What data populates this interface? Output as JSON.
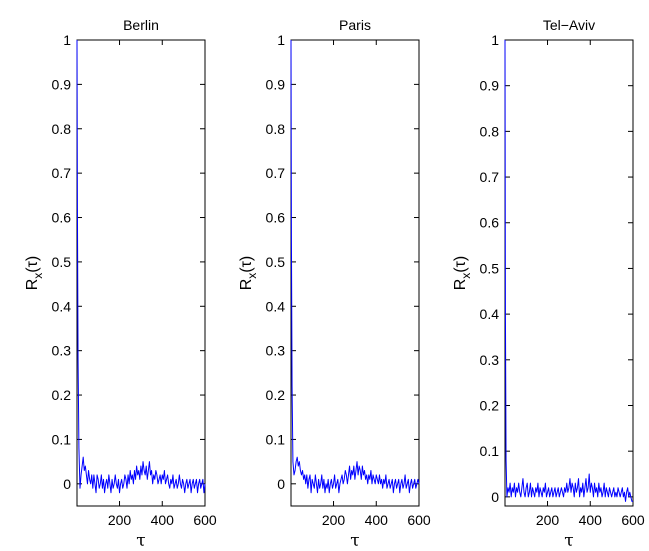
{
  "chart_data": [
    {
      "type": "line",
      "title": "Berlin",
      "xlabel": "τ",
      "ylabel": {
        "base": "R",
        "sub": "x",
        "arg": "(τ)"
      },
      "xlim": [
        1,
        600
      ],
      "ylim": [
        -0.05,
        1
      ],
      "xticks": [
        200,
        400,
        600
      ],
      "yticks": [
        0,
        0.1,
        0.2,
        0.3,
        0.4,
        0.5,
        0.6,
        0.7,
        0.8,
        0.9,
        1
      ],
      "grid": false,
      "series": [
        {
          "color": "#0000ff",
          "x": [
            1,
            3,
            6,
            10,
            15,
            20,
            25,
            30,
            35,
            40,
            45,
            50,
            55,
            60,
            65,
            70,
            75,
            80,
            85,
            90,
            95,
            100,
            105,
            110,
            115,
            120,
            125,
            130,
            135,
            140,
            145,
            150,
            155,
            160,
            165,
            170,
            175,
            180,
            185,
            190,
            195,
            200,
            205,
            210,
            215,
            220,
            225,
            230,
            235,
            240,
            245,
            250,
            255,
            260,
            265,
            270,
            275,
            280,
            285,
            290,
            295,
            300,
            305,
            310,
            315,
            320,
            325,
            330,
            335,
            340,
            345,
            350,
            355,
            360,
            365,
            370,
            375,
            380,
            385,
            390,
            395,
            400,
            405,
            410,
            415,
            420,
            425,
            430,
            435,
            440,
            445,
            450,
            455,
            460,
            465,
            470,
            475,
            480,
            485,
            490,
            495,
            500,
            505,
            510,
            515,
            520,
            525,
            530,
            535,
            540,
            545,
            550,
            555,
            560,
            565,
            570,
            575,
            580,
            585,
            590,
            595,
            600
          ],
          "y": [
            1,
            0.62,
            0.28,
            0.08,
            -0.01,
            0.02,
            0.04,
            0.06,
            0.03,
            0.04,
            0.02,
            0.0,
            0.03,
            0.01,
            0.0,
            0.02,
            -0.01,
            0.02,
            0.0,
            -0.02,
            0.02,
            0.01,
            -0.01,
            0.0,
            0.02,
            -0.01,
            0.01,
            -0.02,
            0.0,
            0.01,
            -0.01,
            0.02,
            0.0,
            -0.02,
            0.01,
            -0.01,
            0.0,
            0.02,
            0.0,
            -0.01,
            0.01,
            -0.02,
            0.0,
            0.01,
            -0.01,
            0.0,
            0.02,
            0.01,
            -0.01,
            0.02,
            0.0,
            0.03,
            0.01,
            0.02,
            0.0,
            0.03,
            0.01,
            0.04,
            0.02,
            0.03,
            0.01,
            0.04,
            0.02,
            0.05,
            0.03,
            0.02,
            0.04,
            0.01,
            0.03,
            0.05,
            0.02,
            0.03,
            0.0,
            0.02,
            0.01,
            0.03,
            0.02,
            0.0,
            0.01,
            0.02,
            0.0,
            0.02,
            0.01,
            0.03,
            0.0,
            0.01,
            0.02,
            0.0,
            -0.01,
            0.01,
            0.0,
            0.02,
            -0.01,
            0.0,
            0.01,
            -0.01,
            0.0,
            0.02,
            0.0,
            -0.01,
            0.01,
            0.0,
            -0.02,
            0.0,
            0.01,
            -0.01,
            0.0,
            0.01,
            -0.02,
            0.0,
            0.01,
            -0.01,
            0.0,
            0.01,
            -0.02,
            0.0,
            0.01,
            -0.01,
            0.0,
            0.01,
            -0.02,
            0.0
          ]
        }
      ]
    },
    {
      "type": "line",
      "title": "Paris",
      "xlabel": "τ",
      "ylabel": {
        "base": "R",
        "sub": "x",
        "arg": "(τ)"
      },
      "xlim": [
        1,
        600
      ],
      "ylim": [
        -0.05,
        1
      ],
      "xticks": [
        200,
        400,
        600
      ],
      "yticks": [
        0,
        0.1,
        0.2,
        0.3,
        0.4,
        0.5,
        0.6,
        0.7,
        0.8,
        0.9,
        1
      ],
      "grid": false,
      "series": [
        {
          "color": "#0000ff",
          "x": [
            1,
            3,
            6,
            10,
            15,
            20,
            25,
            30,
            35,
            40,
            45,
            50,
            55,
            60,
            65,
            70,
            75,
            80,
            85,
            90,
            95,
            100,
            105,
            110,
            115,
            120,
            125,
            130,
            135,
            140,
            145,
            150,
            155,
            160,
            165,
            170,
            175,
            180,
            185,
            190,
            195,
            200,
            205,
            210,
            215,
            220,
            225,
            230,
            235,
            240,
            245,
            250,
            255,
            260,
            265,
            270,
            275,
            280,
            285,
            290,
            295,
            300,
            305,
            310,
            315,
            320,
            325,
            330,
            335,
            340,
            345,
            350,
            355,
            360,
            365,
            370,
            375,
            380,
            385,
            390,
            395,
            400,
            405,
            410,
            415,
            420,
            425,
            430,
            435,
            440,
            445,
            450,
            455,
            460,
            465,
            470,
            475,
            480,
            485,
            490,
            495,
            500,
            505,
            510,
            515,
            520,
            525,
            530,
            535,
            540,
            545,
            550,
            555,
            560,
            565,
            570,
            575,
            580,
            585,
            590,
            595,
            600
          ],
          "y": [
            1,
            0.55,
            0.22,
            0.05,
            0.02,
            0.03,
            0.05,
            0.06,
            0.04,
            0.05,
            0.03,
            0.02,
            0.03,
            0.01,
            0.02,
            0.0,
            0.02,
            -0.01,
            0.01,
            0.02,
            -0.02,
            0.01,
            0.0,
            -0.01,
            0.02,
            0.0,
            -0.02,
            0.01,
            -0.01,
            0.0,
            0.02,
            -0.01,
            0.01,
            -0.02,
            0.0,
            -0.01,
            0.01,
            -0.02,
            0.0,
            0.01,
            -0.01,
            0.0,
            0.02,
            -0.01,
            0.0,
            0.01,
            -0.02,
            0.0,
            0.01,
            0.02,
            0.0,
            0.01,
            0.03,
            0.02,
            0.0,
            0.02,
            0.04,
            0.01,
            0.03,
            0.02,
            0.04,
            0.01,
            0.03,
            0.05,
            0.02,
            0.04,
            0.03,
            0.01,
            0.04,
            0.02,
            0.03,
            0.01,
            0.02,
            0.0,
            0.02,
            0.01,
            0.03,
            0.0,
            0.02,
            0.01,
            0.0,
            0.02,
            0.01,
            0.0,
            0.02,
            0.0,
            0.01,
            -0.01,
            0.01,
            0.0,
            0.02,
            -0.01,
            0.0,
            0.01,
            -0.01,
            0.0,
            0.01,
            -0.02,
            0.0,
            0.01,
            -0.01,
            0.0,
            0.01,
            -0.02,
            0.0,
            0.01,
            -0.01,
            0.0,
            0.02,
            -0.01,
            0.0,
            0.01,
            -0.02,
            0.0,
            0.01,
            -0.01,
            0.0,
            0.01,
            -0.01,
            0.0,
            0.01,
            0.0
          ]
        }
      ]
    },
    {
      "type": "line",
      "title": "Tel−Aviv",
      "xlabel": "τ",
      "ylabel": {
        "base": "R",
        "sub": "x",
        "arg": "(τ)"
      },
      "xlim": [
        1,
        600
      ],
      "ylim": [
        -0.02,
        1
      ],
      "xticks": [
        200,
        400,
        600
      ],
      "yticks": [
        0,
        0.1,
        0.2,
        0.3,
        0.4,
        0.5,
        0.6,
        0.7,
        0.8,
        0.9,
        1
      ],
      "grid": false,
      "series": [
        {
          "color": "#0000ff",
          "x": [
            1,
            3,
            6,
            10,
            15,
            20,
            25,
            30,
            35,
            40,
            45,
            50,
            55,
            60,
            65,
            70,
            75,
            80,
            85,
            90,
            95,
            100,
            105,
            110,
            115,
            120,
            125,
            130,
            135,
            140,
            145,
            150,
            155,
            160,
            165,
            170,
            175,
            180,
            185,
            190,
            195,
            200,
            205,
            210,
            215,
            220,
            225,
            230,
            235,
            240,
            245,
            250,
            255,
            260,
            265,
            270,
            275,
            280,
            285,
            290,
            295,
            300,
            305,
            310,
            315,
            320,
            325,
            330,
            335,
            340,
            345,
            350,
            355,
            360,
            365,
            370,
            375,
            380,
            385,
            390,
            395,
            400,
            405,
            410,
            415,
            420,
            425,
            430,
            435,
            440,
            445,
            450,
            455,
            460,
            465,
            470,
            475,
            480,
            485,
            490,
            495,
            500,
            505,
            510,
            515,
            520,
            525,
            530,
            535,
            540,
            545,
            550,
            555,
            560,
            565,
            570,
            575,
            580,
            585,
            590,
            595,
            600
          ],
          "y": [
            1,
            0.4,
            0.08,
            0.0,
            0.02,
            0.01,
            0.03,
            0.0,
            0.02,
            0.01,
            0.03,
            0.0,
            0.02,
            0.01,
            0.03,
            0.01,
            0.0,
            0.02,
            0.04,
            0.01,
            0.0,
            0.02,
            0.03,
            0.0,
            0.01,
            0.03,
            0.0,
            0.02,
            0.01,
            0.0,
            0.02,
            0.01,
            0.03,
            0.0,
            0.02,
            0.01,
            0.0,
            0.02,
            0.01,
            0.03,
            0.0,
            0.01,
            0.02,
            0.0,
            0.01,
            0.02,
            0.0,
            0.01,
            0.02,
            0.0,
            0.01,
            0.02,
            0.0,
            0.01,
            0.02,
            0.01,
            0.0,
            0.02,
            0.01,
            0.03,
            0.01,
            0.02,
            0.04,
            0.01,
            0.03,
            0.02,
            0.0,
            0.03,
            0.01,
            0.02,
            0.04,
            0.0,
            0.02,
            0.01,
            0.03,
            0.0,
            0.02,
            0.04,
            0.01,
            0.02,
            0.05,
            0.01,
            0.03,
            0.02,
            0.0,
            0.03,
            0.01,
            0.02,
            0.0,
            0.03,
            0.01,
            0.02,
            0.0,
            0.01,
            0.03,
            0.0,
            0.02,
            0.01,
            0.0,
            0.02,
            0.01,
            0.0,
            0.01,
            0.02,
            0.0,
            0.01,
            0.0,
            0.02,
            0.01,
            0.0,
            0.01,
            0.02,
            0.0,
            0.01,
            -0.01,
            0.01,
            0.02,
            0.0,
            0.01,
            0.0,
            -0.01,
            -0.01
          ]
        }
      ]
    }
  ]
}
